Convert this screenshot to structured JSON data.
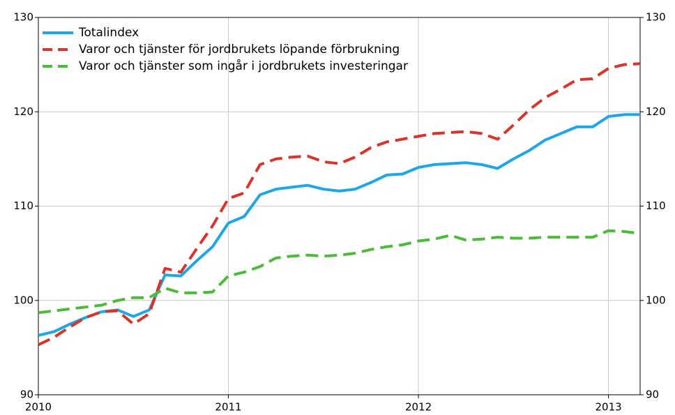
{
  "chart_data": {
    "type": "line",
    "categories": [
      "2010",
      null,
      null,
      null,
      null,
      null,
      null,
      null,
      null,
      null,
      null,
      null,
      "2011",
      null,
      null,
      null,
      null,
      null,
      null,
      null,
      null,
      null,
      null,
      null,
      "2012",
      null,
      null,
      null,
      null,
      null,
      null,
      null,
      null,
      null,
      null,
      null,
      "2013",
      null,
      null
    ],
    "series": [
      {
        "name": "Totalindex",
        "color": "#1ea7e6",
        "dashed": false,
        "values": [
          96.3,
          96.7,
          97.5,
          98.2,
          98.8,
          99.0,
          98.3,
          99.0,
          102.7,
          102.6,
          104.2,
          105.7,
          108.2,
          108.9,
          111.2,
          111.8,
          112.0,
          112.2,
          111.8,
          111.6,
          111.8,
          112.5,
          113.3,
          113.4,
          114.1,
          114.4,
          114.5,
          114.6,
          114.4,
          114.0,
          115.0,
          115.9,
          117.0,
          117.7,
          118.4,
          118.4,
          119.5,
          119.7,
          119.7
        ]
      },
      {
        "name": "Varor och tjänster för jordbrukets löpande förbrukning",
        "color": "#d9342b",
        "dashed": true,
        "values": [
          95.3,
          96.1,
          97.2,
          98.2,
          98.8,
          98.9,
          97.5,
          98.6,
          103.4,
          103.0,
          105.5,
          107.9,
          110.8,
          111.4,
          114.4,
          115.0,
          115.2,
          115.3,
          114.7,
          114.5,
          115.2,
          116.2,
          116.8,
          117.1,
          117.4,
          117.7,
          117.8,
          117.9,
          117.7,
          117.1,
          118.6,
          120.2,
          121.5,
          122.4,
          123.4,
          123.5,
          124.6,
          125.0,
          125.1
        ]
      },
      {
        "name": "Varor och tjänster som ingår i jordbrukets investeringar",
        "color": "#4cbb3a",
        "dashed": true,
        "values": [
          98.7,
          98.9,
          99.1,
          99.3,
          99.5,
          100.0,
          100.3,
          100.3,
          101.3,
          100.8,
          100.8,
          100.9,
          102.6,
          103.0,
          103.6,
          104.5,
          104.7,
          104.8,
          104.7,
          104.8,
          105.0,
          105.4,
          105.7,
          105.9,
          106.3,
          106.5,
          106.9,
          106.4,
          106.5,
          106.7,
          106.6,
          106.6,
          106.7,
          106.7,
          106.7,
          106.7,
          107.4,
          107.3,
          107.1
        ]
      }
    ],
    "ylim": [
      90,
      130
    ],
    "yticks": [
      90,
      100,
      110,
      120,
      130
    ],
    "y2lim": [
      90,
      130
    ],
    "y2ticks": [
      90,
      100,
      110,
      120,
      130
    ],
    "grid": true,
    "legend": "top-left"
  }
}
